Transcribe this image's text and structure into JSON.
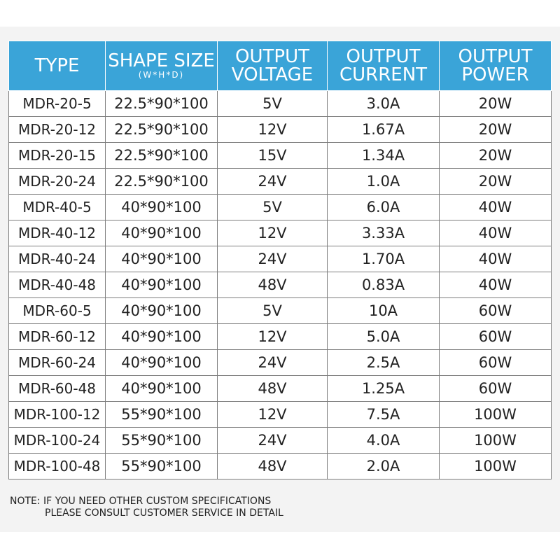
{
  "table": {
    "headers": {
      "type": "TYPE",
      "shape_size": "SHAPE SIZE",
      "shape_size_sub": "(W*H*D)",
      "voltage_line1": "OUTPUT",
      "voltage_line2": "VOLTAGE",
      "current_line1": "OUTPUT",
      "current_line2": "CURRENT",
      "power_line1": "OUTPUT",
      "power_line2": "POWER"
    },
    "rows": [
      {
        "type": "MDR-20-5",
        "size": "22.5*90*100",
        "voltage": "5V",
        "current": "3.0A",
        "power": "20W"
      },
      {
        "type": "MDR-20-12",
        "size": "22.5*90*100",
        "voltage": "12V",
        "current": "1.67A",
        "power": "20W"
      },
      {
        "type": "MDR-20-15",
        "size": "22.5*90*100",
        "voltage": "15V",
        "current": "1.34A",
        "power": "20W"
      },
      {
        "type": "MDR-20-24",
        "size": "22.5*90*100",
        "voltage": "24V",
        "current": "1.0A",
        "power": "20W"
      },
      {
        "type": "MDR-40-5",
        "size": "40*90*100",
        "voltage": "5V",
        "current": "6.0A",
        "power": "40W"
      },
      {
        "type": "MDR-40-12",
        "size": "40*90*100",
        "voltage": "12V",
        "current": "3.33A",
        "power": "40W"
      },
      {
        "type": "MDR-40-24",
        "size": "40*90*100",
        "voltage": "24V",
        "current": "1.70A",
        "power": "40W"
      },
      {
        "type": "MDR-40-48",
        "size": "40*90*100",
        "voltage": "48V",
        "current": "0.83A",
        "power": "40W"
      },
      {
        "type": "MDR-60-5",
        "size": "40*90*100",
        "voltage": "5V",
        "current": "10A",
        "power": "60W"
      },
      {
        "type": "MDR-60-12",
        "size": "40*90*100",
        "voltage": "12V",
        "current": "5.0A",
        "power": "60W"
      },
      {
        "type": "MDR-60-24",
        "size": "40*90*100",
        "voltage": "24V",
        "current": "2.5A",
        "power": "60W"
      },
      {
        "type": "MDR-60-48",
        "size": "40*90*100",
        "voltage": "48V",
        "current": "1.25A",
        "power": "60W"
      },
      {
        "type": "MDR-100-12",
        "size": "55*90*100",
        "voltage": "12V",
        "current": "7.5A",
        "power": "100W"
      },
      {
        "type": "MDR-100-24",
        "size": "55*90*100",
        "voltage": "24V",
        "current": "4.0A",
        "power": "100W"
      },
      {
        "type": "MDR-100-48",
        "size": "55*90*100",
        "voltage": "48V",
        "current": "2.0A",
        "power": "100W"
      }
    ]
  },
  "note": {
    "line1": "NOTE: IF YOU NEED OTHER CUSTOM SPECIFICATIONS",
    "line2": "PLEASE CONSULT CUSTOMER SERVICE IN DETAIL"
  },
  "colors": {
    "header_bg": "#3aa4d8",
    "panel_bg": "#f3f3f3"
  }
}
